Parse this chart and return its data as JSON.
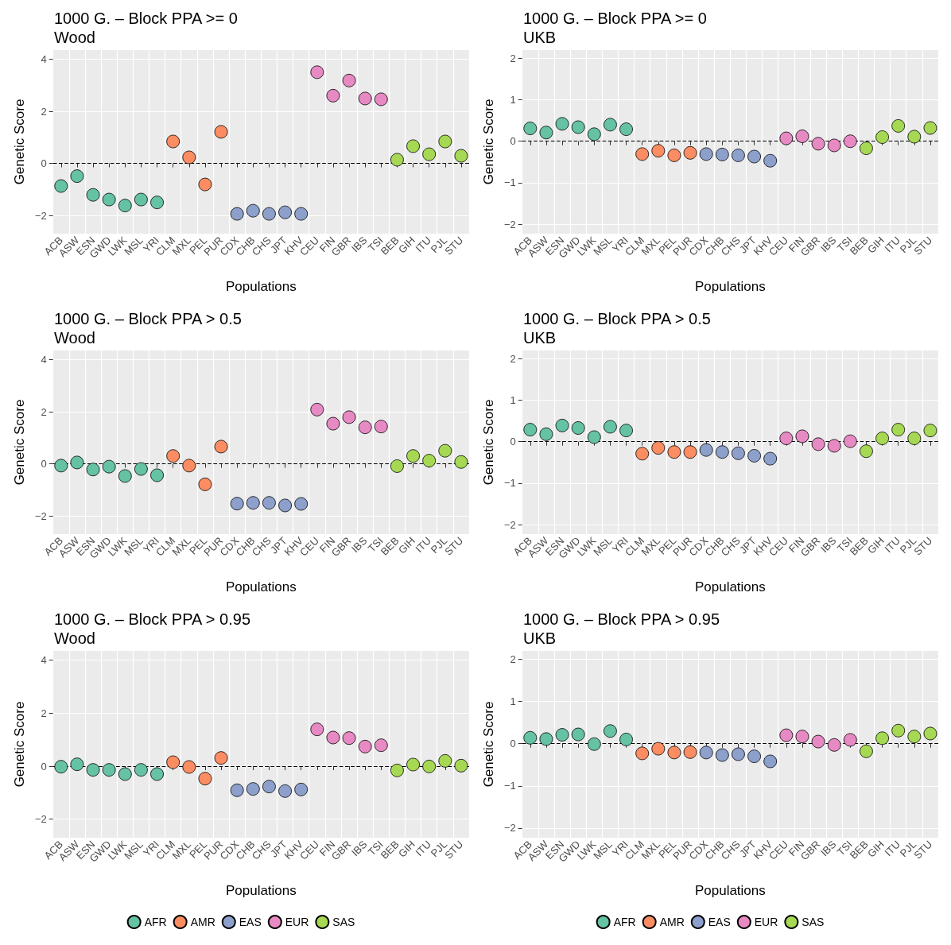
{
  "chart_data": [
    {
      "type": "scatter",
      "title": "1000 G. – Block PPA >= 0",
      "subtitle": "Wood",
      "xlabel": "Populations",
      "ylabel": "Genetic Score",
      "categories": [
        "ACB",
        "ASW",
        "ESN",
        "GWD",
        "LWK",
        "MSL",
        "YRI",
        "CLM",
        "MXL",
        "PEL",
        "PUR",
        "CDX",
        "CHB",
        "CHS",
        "JPT",
        "KHV",
        "CEU",
        "FIN",
        "GBR",
        "IBS",
        "TSI",
        "BEB",
        "GIH",
        "ITU",
        "PJL",
        "STU"
      ],
      "ylim": [
        -2.7,
        4.35
      ],
      "yticks": [
        -2,
        0,
        2,
        4
      ],
      "grid": true,
      "marker": "circle",
      "legend": false,
      "ref_lines": [
        {
          "axis": "y",
          "value": 0,
          "color": "#000000",
          "line_style": "dashed"
        }
      ],
      "series": [
        {
          "color": "#66c2a5",
          "x": [
            "ACB",
            "ASW",
            "ESN",
            "GWD",
            "LWK",
            "MSL",
            "YRI"
          ],
          "values": [
            -0.87,
            -0.49,
            -1.21,
            -1.39,
            -1.62,
            -1.39,
            -1.5
          ]
        },
        {
          "color": "#fc8d62",
          "x": [
            "CLM",
            "MXL",
            "PEL",
            "PUR"
          ],
          "values": [
            0.84,
            0.23,
            -0.81,
            1.21
          ]
        },
        {
          "color": "#8da0cb",
          "x": [
            "CDX",
            "CHB",
            "CHS",
            "JPT",
            "KHV"
          ],
          "values": [
            -1.94,
            -1.82,
            -1.94,
            -1.88,
            -1.94
          ]
        },
        {
          "color": "#e78ac3",
          "x": [
            "CEU",
            "FIN",
            "GBR",
            "IBS",
            "TSI"
          ],
          "values": [
            3.5,
            2.6,
            3.18,
            2.49,
            2.46
          ]
        },
        {
          "color": "#a6d854",
          "x": [
            "BEB",
            "GIH",
            "ITU",
            "PJL",
            "STU"
          ],
          "values": [
            0.14,
            0.66,
            0.35,
            0.84,
            0.29
          ]
        }
      ]
    },
    {
      "type": "scatter",
      "title": "1000 G. – Block PPA >= 0",
      "subtitle": "UKB",
      "xlabel": "Populations",
      "ylabel": "Genetic Score",
      "categories": [
        "ACB",
        "ASW",
        "ESN",
        "GWD",
        "LWK",
        "MSL",
        "YRI",
        "CLM",
        "MXL",
        "PEL",
        "PUR",
        "CDX",
        "CHB",
        "CHS",
        "JPT",
        "KHV",
        "CEU",
        "FIN",
        "GBR",
        "IBS",
        "TSI",
        "BEB",
        "GIH",
        "ITU",
        "PJL",
        "STU"
      ],
      "ylim": [
        -2.23,
        2.2
      ],
      "yticks": [
        -2,
        -1,
        0,
        1,
        2
      ],
      "grid": true,
      "marker": "circle",
      "legend": false,
      "ref_lines": [
        {
          "axis": "y",
          "value": 0,
          "color": "#000000",
          "line_style": "dashed"
        }
      ],
      "series": [
        {
          "color": "#66c2a5",
          "x": [
            "ACB",
            "ASW",
            "ESN",
            "GWD",
            "LWK",
            "MSL",
            "YRI"
          ],
          "values": [
            0.31,
            0.21,
            0.42,
            0.34,
            0.17,
            0.4,
            0.29
          ]
        },
        {
          "color": "#fc8d62",
          "x": [
            "CLM",
            "MXL",
            "PEL",
            "PUR"
          ],
          "values": [
            -0.31,
            -0.23,
            -0.34,
            -0.28
          ]
        },
        {
          "color": "#8da0cb",
          "x": [
            "CDX",
            "CHB",
            "CHS",
            "JPT",
            "KHV"
          ],
          "values": [
            -0.31,
            -0.32,
            -0.34,
            -0.37,
            -0.47
          ]
        },
        {
          "color": "#e78ac3",
          "x": [
            "CEU",
            "FIN",
            "GBR",
            "IBS",
            "TSI"
          ],
          "values": [
            0.07,
            0.12,
            -0.06,
            -0.1,
            0
          ]
        },
        {
          "color": "#a6d854",
          "x": [
            "BEB",
            "GIH",
            "ITU",
            "PJL",
            "STU"
          ],
          "values": [
            -0.17,
            0.1,
            0.37,
            0.11,
            0.32
          ]
        }
      ]
    },
    {
      "type": "scatter",
      "title": "1000 G. – Block PPA > 0.5",
      "subtitle": "Wood",
      "xlabel": "Populations",
      "ylabel": "Genetic Score",
      "categories": [
        "ACB",
        "ASW",
        "ESN",
        "GWD",
        "LWK",
        "MSL",
        "YRI",
        "CLM",
        "MXL",
        "PEL",
        "PUR",
        "CDX",
        "CHB",
        "CHS",
        "JPT",
        "KHV",
        "CEU",
        "FIN",
        "GBR",
        "IBS",
        "TSI",
        "BEB",
        "GIH",
        "ITU",
        "PJL",
        "STU"
      ],
      "ylim": [
        -2.7,
        4.35
      ],
      "yticks": [
        -2,
        0,
        2,
        4
      ],
      "grid": true,
      "marker": "circle",
      "legend": false,
      "ref_lines": [
        {
          "axis": "y",
          "value": 0,
          "color": "#000000",
          "line_style": "dashed"
        }
      ],
      "series": [
        {
          "color": "#66c2a5",
          "x": [
            "ACB",
            "ASW",
            "ESN",
            "GWD",
            "LWK",
            "MSL",
            "YRI"
          ],
          "values": [
            -0.07,
            0.05,
            -0.22,
            -0.11,
            -0.47,
            -0.2,
            -0.44
          ]
        },
        {
          "color": "#fc8d62",
          "x": [
            "CLM",
            "MXL",
            "PEL",
            "PUR"
          ],
          "values": [
            0.3,
            -0.07,
            -0.79,
            0.66
          ]
        },
        {
          "color": "#8da0cb",
          "x": [
            "CDX",
            "CHB",
            "CHS",
            "JPT",
            "KHV"
          ],
          "values": [
            -1.53,
            -1.5,
            -1.5,
            -1.6,
            -1.54
          ]
        },
        {
          "color": "#e78ac3",
          "x": [
            "CEU",
            "FIN",
            "GBR",
            "IBS",
            "TSI"
          ],
          "values": [
            2.08,
            1.54,
            1.79,
            1.4,
            1.43
          ]
        },
        {
          "color": "#a6d854",
          "x": [
            "BEB",
            "GIH",
            "ITU",
            "PJL",
            "STU"
          ],
          "values": [
            -0.09,
            0.3,
            0.12,
            0.5,
            0.07
          ]
        }
      ]
    },
    {
      "type": "scatter",
      "title": "1000 G. – Block PPA > 0.5",
      "subtitle": "UKB",
      "xlabel": "Populations",
      "ylabel": "Genetic Score",
      "categories": [
        "ACB",
        "ASW",
        "ESN",
        "GWD",
        "LWK",
        "MSL",
        "YRI",
        "CLM",
        "MXL",
        "PEL",
        "PUR",
        "CDX",
        "CHB",
        "CHS",
        "JPT",
        "KHV",
        "CEU",
        "FIN",
        "GBR",
        "IBS",
        "TSI",
        "BEB",
        "GIH",
        "ITU",
        "PJL",
        "STU"
      ],
      "ylim": [
        -2.23,
        2.2
      ],
      "yticks": [
        -2,
        -1,
        0,
        1,
        2
      ],
      "grid": true,
      "marker": "circle",
      "legend": false,
      "ref_lines": [
        {
          "axis": "y",
          "value": 0,
          "color": "#000000",
          "line_style": "dashed"
        }
      ],
      "series": [
        {
          "color": "#66c2a5",
          "x": [
            "ACB",
            "ASW",
            "ESN",
            "GWD",
            "LWK",
            "MSL",
            "YRI"
          ],
          "values": [
            0.29,
            0.18,
            0.39,
            0.33,
            0.11,
            0.36,
            0.27
          ]
        },
        {
          "color": "#fc8d62",
          "x": [
            "CLM",
            "MXL",
            "PEL",
            "PUR"
          ],
          "values": [
            -0.29,
            -0.15,
            -0.25,
            -0.25
          ]
        },
        {
          "color": "#8da0cb",
          "x": [
            "CDX",
            "CHB",
            "CHS",
            "JPT",
            "KHV"
          ],
          "values": [
            -0.2,
            -0.25,
            -0.28,
            -0.34,
            -0.41
          ]
        },
        {
          "color": "#e78ac3",
          "x": [
            "CEU",
            "FIN",
            "GBR",
            "IBS",
            "TSI"
          ],
          "values": [
            0.08,
            0.13,
            -0.06,
            -0.1,
            0.01
          ]
        },
        {
          "color": "#a6d854",
          "x": [
            "BEB",
            "GIH",
            "ITU",
            "PJL",
            "STU"
          ],
          "values": [
            -0.23,
            0.08,
            0.29,
            0.08,
            0.27
          ]
        }
      ]
    },
    {
      "type": "scatter",
      "title": "1000 G. – Block PPA > 0.95",
      "subtitle": "Wood",
      "xlabel": "Populations",
      "ylabel": "Genetic Score",
      "categories": [
        "ACB",
        "ASW",
        "ESN",
        "GWD",
        "LWK",
        "MSL",
        "YRI",
        "CLM",
        "MXL",
        "PEL",
        "PUR",
        "CDX",
        "CHB",
        "CHS",
        "JPT",
        "KHV",
        "CEU",
        "FIN",
        "GBR",
        "IBS",
        "TSI",
        "BEB",
        "GIH",
        "ITU",
        "PJL",
        "STU"
      ],
      "ylim": [
        -2.7,
        4.35
      ],
      "yticks": [
        -2,
        0,
        2,
        4
      ],
      "grid": true,
      "marker": "circle",
      "legend": "bottom",
      "ref_lines": [
        {
          "axis": "y",
          "value": 0,
          "color": "#000000",
          "line_style": "dashed"
        }
      ],
      "series": [
        {
          "name": "AFR",
          "color": "#66c2a5",
          "x": [
            "ACB",
            "ASW",
            "ESN",
            "GWD",
            "LWK",
            "MSL",
            "YRI"
          ],
          "values": [
            -0.02,
            0.07,
            -0.14,
            -0.14,
            -0.3,
            -0.14,
            -0.3
          ]
        },
        {
          "name": "AMR",
          "color": "#fc8d62",
          "x": [
            "CLM",
            "MXL",
            "PEL",
            "PUR"
          ],
          "values": [
            0.15,
            -0.03,
            -0.47,
            0.31
          ]
        },
        {
          "name": "EAS",
          "color": "#8da0cb",
          "x": [
            "CDX",
            "CHB",
            "CHS",
            "JPT",
            "KHV"
          ],
          "values": [
            -0.91,
            -0.86,
            -0.77,
            -0.94,
            -0.88
          ]
        },
        {
          "name": "EUR",
          "color": "#e78ac3",
          "x": [
            "CEU",
            "FIN",
            "GBR",
            "IBS",
            "TSI"
          ],
          "values": [
            1.39,
            1.08,
            1.06,
            0.74,
            0.79
          ]
        },
        {
          "name": "SAS",
          "color": "#a6d854",
          "x": [
            "BEB",
            "GIH",
            "ITU",
            "PJL",
            "STU"
          ],
          "values": [
            -0.16,
            0.06,
            -0.01,
            0.2,
            0.02
          ]
        }
      ]
    },
    {
      "type": "scatter",
      "title": "1000 G. – Block PPA > 0.95",
      "subtitle": "UKB",
      "xlabel": "Populations",
      "ylabel": "Genetic Score",
      "categories": [
        "ACB",
        "ASW",
        "ESN",
        "GWD",
        "LWK",
        "MSL",
        "YRI",
        "CLM",
        "MXL",
        "PEL",
        "PUR",
        "CDX",
        "CHB",
        "CHS",
        "JPT",
        "KHV",
        "CEU",
        "FIN",
        "GBR",
        "IBS",
        "TSI",
        "BEB",
        "GIH",
        "ITU",
        "PJL",
        "STU"
      ],
      "ylim": [
        -2.23,
        2.2
      ],
      "yticks": [
        -2,
        -1,
        0,
        1,
        2
      ],
      "grid": true,
      "marker": "circle",
      "legend": "bottom",
      "ref_lines": [
        {
          "axis": "y",
          "value": 0,
          "color": "#000000",
          "line_style": "dashed"
        }
      ],
      "series": [
        {
          "name": "AFR",
          "color": "#66c2a5",
          "x": [
            "ACB",
            "ASW",
            "ESN",
            "GWD",
            "LWK",
            "MSL",
            "YRI"
          ],
          "values": [
            0.14,
            0.11,
            0.21,
            0.22,
            -0.01,
            0.3,
            0.1
          ]
        },
        {
          "name": "AMR",
          "color": "#fc8d62",
          "x": [
            "CLM",
            "MXL",
            "PEL",
            "PUR"
          ],
          "values": [
            -0.23,
            -0.12,
            -0.21,
            -0.2
          ]
        },
        {
          "name": "EAS",
          "color": "#8da0cb",
          "x": [
            "CDX",
            "CHB",
            "CHS",
            "JPT",
            "KHV"
          ],
          "values": [
            -0.21,
            -0.27,
            -0.25,
            -0.3,
            -0.42
          ]
        },
        {
          "name": "EUR",
          "color": "#e78ac3",
          "x": [
            "CEU",
            "FIN",
            "GBR",
            "IBS",
            "TSI"
          ],
          "values": [
            0.2,
            0.17,
            0.05,
            -0.03,
            0.09
          ]
        },
        {
          "name": "SAS",
          "color": "#a6d854",
          "x": [
            "BEB",
            "GIH",
            "ITU",
            "PJL",
            "STU"
          ],
          "values": [
            -0.18,
            0.13,
            0.31,
            0.17,
            0.24
          ]
        }
      ]
    }
  ]
}
